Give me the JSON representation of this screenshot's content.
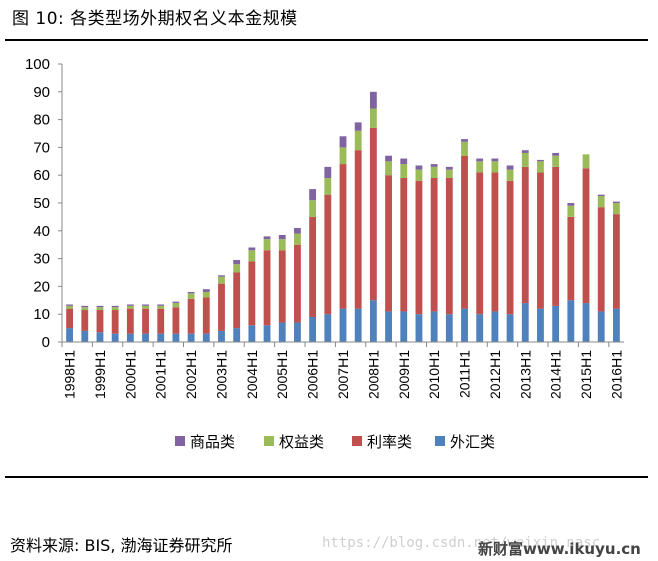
{
  "figure_title": "图 10:  各类型场外期权名义本金规模",
  "source_text": "资料来源: BIS, 渤海证券研究所",
  "watermark": {
    "url": "https://blog.csdn.net/weixin_nasc",
    "site": "新财富www.ikuyu.cn"
  },
  "chart_data": {
    "type": "bar",
    "stacked": true,
    "title": "",
    "xlabel": "",
    "ylabel": "",
    "ylim": [
      0,
      100
    ],
    "yticks": [
      0,
      10,
      20,
      30,
      40,
      50,
      60,
      70,
      80,
      90,
      100
    ],
    "grid": false,
    "legend_position": "bottom",
    "categories": [
      "1998H1",
      "1998H2",
      "1999H1",
      "1999H2",
      "2000H1",
      "2000H2",
      "2001H1",
      "2001H2",
      "2002H1",
      "2002H2",
      "2003H1",
      "2003H2",
      "2004H1",
      "2004H2",
      "2005H1",
      "2005H2",
      "2006H1",
      "2006H2",
      "2007H1",
      "2007H2",
      "2008H1",
      "2008H2",
      "2009H1",
      "2009H2",
      "2010H1",
      "2010H2",
      "2011H1",
      "2011H2",
      "2012H1",
      "2012H2",
      "2013H1",
      "2013H2",
      "2014H1",
      "2014H2",
      "2015H1",
      "2015H2",
      "2016H1"
    ],
    "xtick_labels": [
      "1998H1",
      "1999H1",
      "2000H1",
      "2001H1",
      "2002H1",
      "2003H1",
      "2004H1",
      "2005H1",
      "2006H1",
      "2007H1",
      "2008H1",
      "2009H1",
      "2010H1",
      "2011H1",
      "2012H1",
      "2013H1",
      "2014H1",
      "2015H1",
      "2016H1"
    ],
    "series": [
      {
        "name": "外汇类",
        "color": "#4f81bd",
        "values": [
          5,
          4,
          3.5,
          3,
          3,
          3,
          3,
          3,
          3,
          3,
          4,
          5,
          6,
          6,
          7,
          7,
          9,
          10,
          12,
          12,
          15,
          11,
          11,
          10,
          11,
          10,
          12,
          10,
          11,
          10,
          14,
          12,
          13,
          15,
          14,
          11,
          12
        ]
      },
      {
        "name": "利率类",
        "color": "#c0504d",
        "values": [
          7,
          7.5,
          8,
          8.5,
          9,
          9,
          9,
          9.5,
          12.5,
          13,
          17,
          20,
          23,
          27,
          26,
          28,
          36,
          43,
          52,
          57,
          62,
          49,
          48,
          48,
          48,
          49,
          55,
          51,
          50,
          48,
          49,
          49,
          50,
          30,
          48.5,
          37.5,
          34
        ]
      },
      {
        "name": "权益类",
        "color": "#9bbb59",
        "values": [
          1,
          1,
          1,
          1,
          1,
          1,
          1,
          1.5,
          2,
          2,
          2.5,
          3,
          4,
          4,
          4,
          4,
          6,
          6,
          6,
          7,
          7,
          5,
          5,
          4,
          4,
          3,
          5,
          4,
          4,
          4,
          5,
          4,
          4,
          4,
          5,
          4,
          4
        ]
      },
      {
        "name": "商品类",
        "color": "#8064a2",
        "values": [
          0.5,
          0.5,
          0.5,
          0.5,
          0.5,
          0.5,
          0.5,
          0.5,
          0.5,
          1,
          0.5,
          1.5,
          1,
          1,
          1.5,
          2,
          4,
          4,
          4,
          3,
          6,
          2,
          2,
          1.5,
          1,
          1,
          1,
          1,
          1,
          1.5,
          1,
          0.5,
          1,
          1,
          0,
          0.5,
          0.5
        ]
      }
    ],
    "legend_order": [
      "商品类",
      "权益类",
      "利率类",
      "外汇类"
    ]
  }
}
